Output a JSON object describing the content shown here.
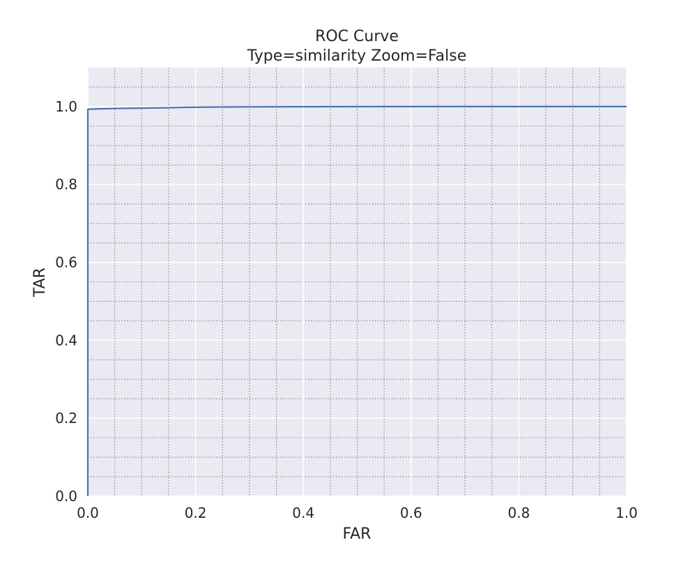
{
  "chart_data": {
    "type": "line",
    "title": "ROC Curve",
    "subtitle": "Type=similarity Zoom=False",
    "xlabel": "FAR",
    "ylabel": "TAR",
    "xlim": [
      0.0,
      1.0
    ],
    "ylim": [
      0.0,
      1.1
    ],
    "x_ticks": [
      "0.0",
      "0.2",
      "0.4",
      "0.6",
      "0.8",
      "1.0"
    ],
    "y_ticks": [
      "0.0",
      "0.2",
      "0.4",
      "0.6",
      "0.8",
      "1.0"
    ],
    "x_tick_values": [
      0.0,
      0.2,
      0.4,
      0.6,
      0.8,
      1.0
    ],
    "y_tick_values": [
      0.0,
      0.2,
      0.4,
      0.6,
      0.8,
      1.0
    ],
    "grid": true,
    "minor_grid": true,
    "legend": "none",
    "background_color": "#eaeaf2",
    "series": [
      {
        "color": "#4c72b0",
        "x": [
          0.0,
          0.0,
          0.02,
          0.05,
          0.1,
          0.15,
          0.18,
          0.25,
          0.3,
          0.4,
          0.5,
          0.6,
          0.7,
          0.8,
          0.9,
          1.0
        ],
        "y": [
          0.0,
          0.993,
          0.994,
          0.995,
          0.996,
          0.997,
          0.998,
          0.999,
          0.9993,
          0.9996,
          0.9999,
          1.0,
          1.0,
          1.0,
          1.0,
          1.0
        ]
      }
    ]
  }
}
